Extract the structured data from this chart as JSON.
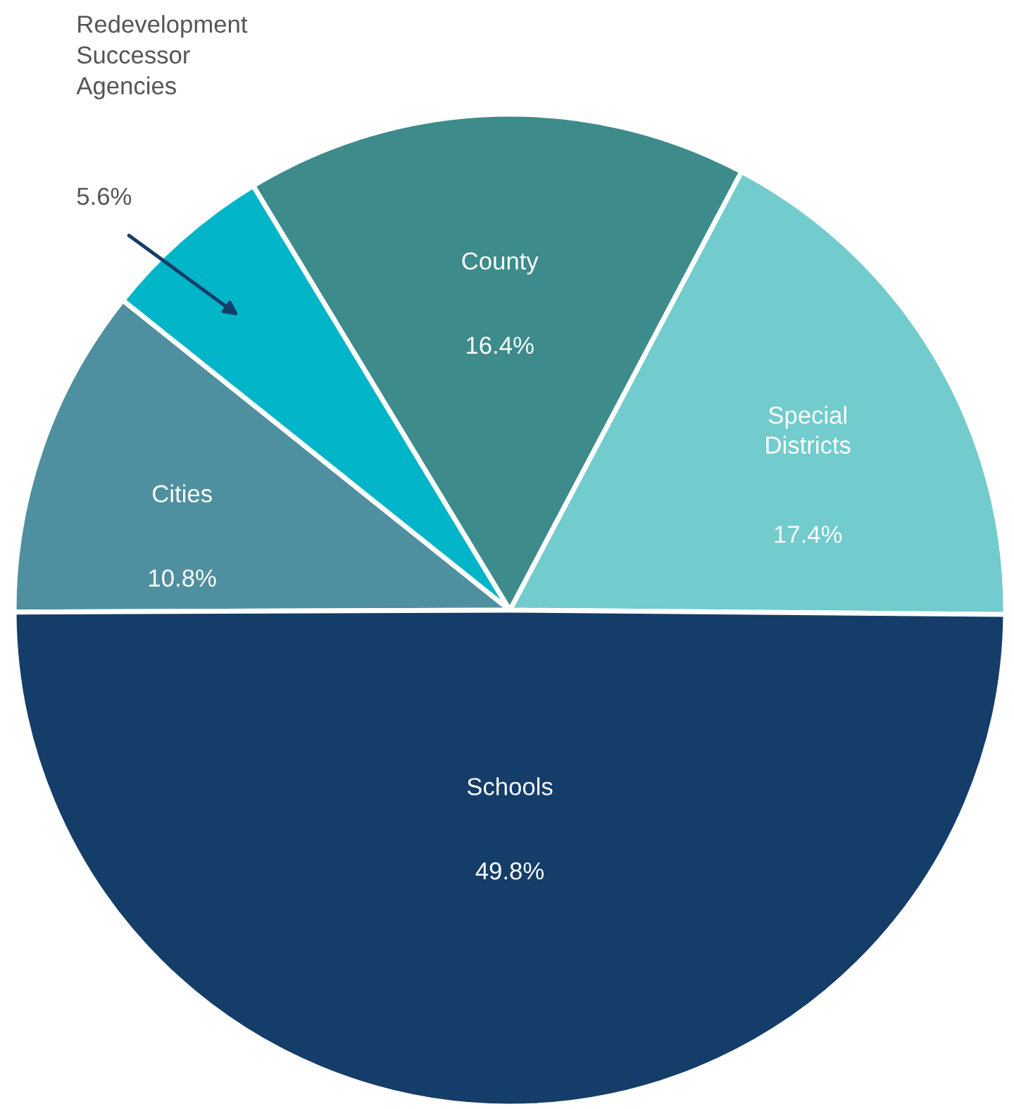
{
  "chart_data": {
    "type": "pie",
    "categories": [
      "Special Districts",
      "County",
      "Redevelopment Successor Agencies",
      "Cities",
      "Schools"
    ],
    "values": [
      17.4,
      16.4,
      5.6,
      10.8,
      49.8
    ],
    "value_labels": [
      "17.4%",
      "16.4%",
      "5.6%",
      "10.8%",
      "49.8%"
    ],
    "colors": [
      "#72cbcc",
      "#3d8b8b",
      "#00b5c8",
      "#4f90a0",
      "#153d69"
    ],
    "legend": false
  }
}
